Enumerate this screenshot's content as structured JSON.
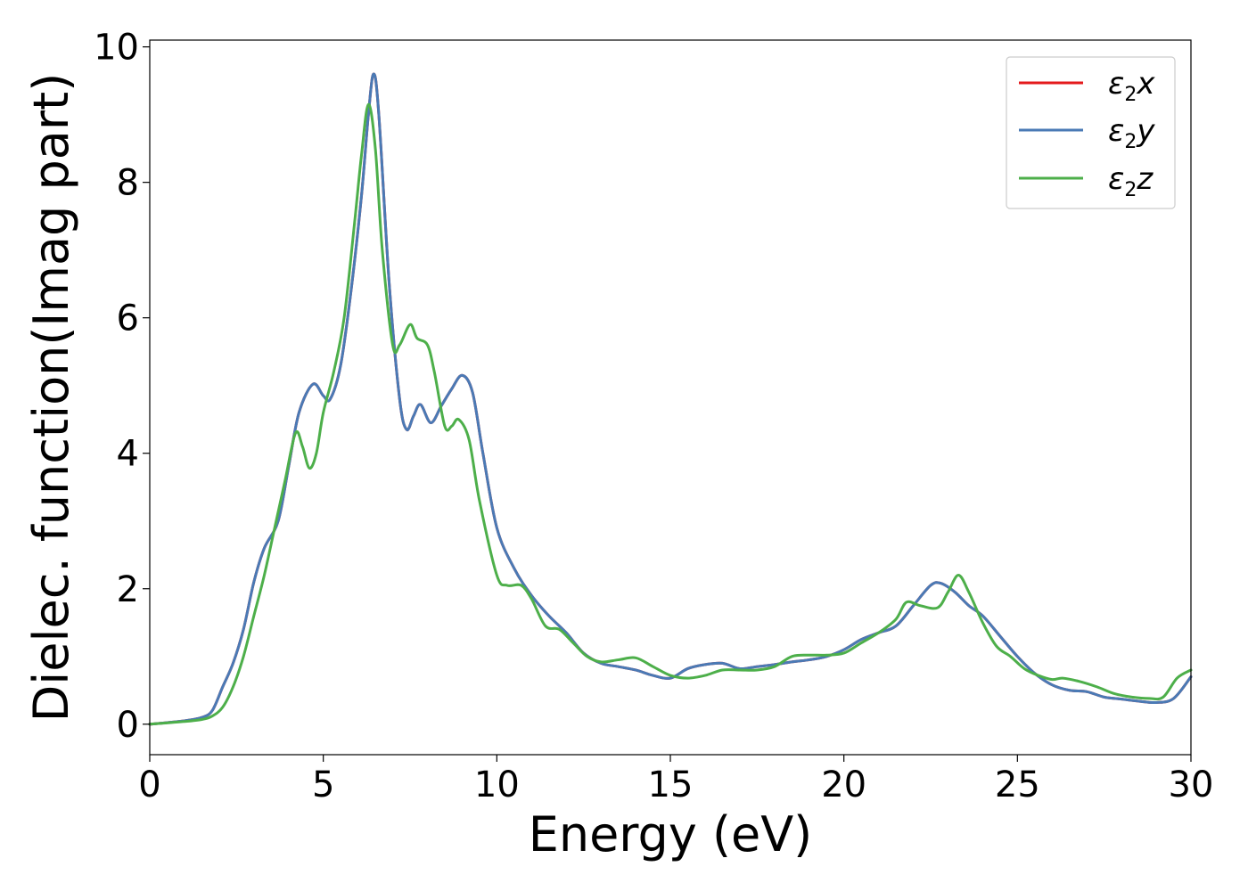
{
  "chart_data": {
    "type": "line",
    "xlabel": "Energy (eV)",
    "ylabel": "Dielec. function(Imag part)",
    "xlim": [
      0,
      30
    ],
    "ylim": [
      -0.45,
      10.1
    ],
    "xticks": [
      "0",
      "5",
      "10",
      "15",
      "20",
      "25",
      "30"
    ],
    "yticks": [
      "0",
      "2",
      "4",
      "6",
      "8",
      "10"
    ],
    "grid": false,
    "legend_position": "top-right",
    "series": [
      {
        "name": "ε2x",
        "legend": {
          "base": "ε",
          "sub": "2",
          "tail": "x"
        },
        "color": "#e41a1c",
        "points": [
          [
            0,
            0
          ],
          [
            1,
            0.05
          ],
          [
            1.5,
            0.1
          ],
          [
            1.8,
            0.2
          ],
          [
            2.1,
            0.55
          ],
          [
            2.4,
            0.9
          ],
          [
            2.7,
            1.4
          ],
          [
            3.0,
            2.1
          ],
          [
            3.3,
            2.6
          ],
          [
            3.7,
            3.0
          ],
          [
            4.0,
            3.8
          ],
          [
            4.3,
            4.6
          ],
          [
            4.7,
            5.02
          ],
          [
            5.0,
            4.85
          ],
          [
            5.2,
            4.8
          ],
          [
            5.5,
            5.3
          ],
          [
            5.8,
            6.4
          ],
          [
            6.1,
            7.8
          ],
          [
            6.3,
            9.0
          ],
          [
            6.45,
            9.6
          ],
          [
            6.6,
            9.0
          ],
          [
            6.9,
            6.5
          ],
          [
            7.2,
            4.8
          ],
          [
            7.4,
            4.35
          ],
          [
            7.6,
            4.55
          ],
          [
            7.8,
            4.72
          ],
          [
            8.1,
            4.45
          ],
          [
            8.4,
            4.7
          ],
          [
            8.7,
            4.95
          ],
          [
            9.0,
            5.15
          ],
          [
            9.3,
            4.9
          ],
          [
            9.6,
            4.0
          ],
          [
            10.0,
            2.9
          ],
          [
            10.5,
            2.3
          ],
          [
            11.0,
            1.9
          ],
          [
            11.5,
            1.6
          ],
          [
            12.0,
            1.35
          ],
          [
            12.5,
            1.05
          ],
          [
            13.0,
            0.9
          ],
          [
            13.5,
            0.85
          ],
          [
            14.0,
            0.8
          ],
          [
            14.5,
            0.72
          ],
          [
            15.0,
            0.68
          ],
          [
            15.5,
            0.82
          ],
          [
            16.0,
            0.88
          ],
          [
            16.5,
            0.9
          ],
          [
            17.0,
            0.82
          ],
          [
            17.5,
            0.85
          ],
          [
            18.0,
            0.88
          ],
          [
            18.5,
            0.92
          ],
          [
            19.0,
            0.95
          ],
          [
            19.5,
            1.0
          ],
          [
            20.0,
            1.1
          ],
          [
            20.5,
            1.25
          ],
          [
            21.0,
            1.35
          ],
          [
            21.5,
            1.45
          ],
          [
            22.0,
            1.75
          ],
          [
            22.5,
            2.05
          ],
          [
            22.8,
            2.08
          ],
          [
            23.2,
            1.95
          ],
          [
            23.6,
            1.75
          ],
          [
            24.0,
            1.6
          ],
          [
            24.5,
            1.3
          ],
          [
            25.0,
            1.0
          ],
          [
            25.5,
            0.75
          ],
          [
            26.0,
            0.58
          ],
          [
            26.5,
            0.5
          ],
          [
            27.0,
            0.48
          ],
          [
            27.5,
            0.4
          ],
          [
            28.0,
            0.37
          ],
          [
            28.5,
            0.34
          ],
          [
            29.0,
            0.32
          ],
          [
            29.5,
            0.38
          ],
          [
            30.0,
            0.7
          ]
        ]
      },
      {
        "name": "ε2y",
        "legend": {
          "base": "ε",
          "sub": "2",
          "tail": "y"
        },
        "color": "#4a7ab5",
        "points": [
          [
            0,
            0
          ],
          [
            1,
            0.05
          ],
          [
            1.5,
            0.1
          ],
          [
            1.8,
            0.2
          ],
          [
            2.1,
            0.55
          ],
          [
            2.4,
            0.9
          ],
          [
            2.7,
            1.4
          ],
          [
            3.0,
            2.1
          ],
          [
            3.3,
            2.6
          ],
          [
            3.7,
            3.0
          ],
          [
            4.0,
            3.8
          ],
          [
            4.3,
            4.6
          ],
          [
            4.7,
            5.02
          ],
          [
            5.0,
            4.85
          ],
          [
            5.2,
            4.8
          ],
          [
            5.5,
            5.3
          ],
          [
            5.8,
            6.4
          ],
          [
            6.1,
            7.8
          ],
          [
            6.3,
            9.0
          ],
          [
            6.45,
            9.6
          ],
          [
            6.6,
            9.0
          ],
          [
            6.9,
            6.5
          ],
          [
            7.2,
            4.8
          ],
          [
            7.4,
            4.35
          ],
          [
            7.6,
            4.55
          ],
          [
            7.8,
            4.72
          ],
          [
            8.1,
            4.45
          ],
          [
            8.4,
            4.7
          ],
          [
            8.7,
            4.95
          ],
          [
            9.0,
            5.15
          ],
          [
            9.3,
            4.9
          ],
          [
            9.6,
            4.0
          ],
          [
            10.0,
            2.9
          ],
          [
            10.5,
            2.3
          ],
          [
            11.0,
            1.9
          ],
          [
            11.5,
            1.6
          ],
          [
            12.0,
            1.35
          ],
          [
            12.5,
            1.05
          ],
          [
            13.0,
            0.9
          ],
          [
            13.5,
            0.85
          ],
          [
            14.0,
            0.8
          ],
          [
            14.5,
            0.72
          ],
          [
            15.0,
            0.68
          ],
          [
            15.5,
            0.82
          ],
          [
            16.0,
            0.88
          ],
          [
            16.5,
            0.9
          ],
          [
            17.0,
            0.82
          ],
          [
            17.5,
            0.85
          ],
          [
            18.0,
            0.88
          ],
          [
            18.5,
            0.92
          ],
          [
            19.0,
            0.95
          ],
          [
            19.5,
            1.0
          ],
          [
            20.0,
            1.1
          ],
          [
            20.5,
            1.25
          ],
          [
            21.0,
            1.35
          ],
          [
            21.5,
            1.45
          ],
          [
            22.0,
            1.75
          ],
          [
            22.5,
            2.05
          ],
          [
            22.8,
            2.08
          ],
          [
            23.2,
            1.95
          ],
          [
            23.6,
            1.75
          ],
          [
            24.0,
            1.6
          ],
          [
            24.5,
            1.3
          ],
          [
            25.0,
            1.0
          ],
          [
            25.5,
            0.75
          ],
          [
            26.0,
            0.58
          ],
          [
            26.5,
            0.5
          ],
          [
            27.0,
            0.48
          ],
          [
            27.5,
            0.4
          ],
          [
            28.0,
            0.37
          ],
          [
            28.5,
            0.34
          ],
          [
            29.0,
            0.32
          ],
          [
            29.5,
            0.38
          ],
          [
            30.0,
            0.7
          ]
        ]
      },
      {
        "name": "ε2z",
        "legend": {
          "base": "ε",
          "sub": "2",
          "tail": "z"
        },
        "color": "#4daf4a",
        "points": [
          [
            0,
            0
          ],
          [
            1,
            0.04
          ],
          [
            1.5,
            0.07
          ],
          [
            1.8,
            0.12
          ],
          [
            2.1,
            0.25
          ],
          [
            2.4,
            0.55
          ],
          [
            2.7,
            1.0
          ],
          [
            3.0,
            1.6
          ],
          [
            3.3,
            2.2
          ],
          [
            3.6,
            2.9
          ],
          [
            3.9,
            3.6
          ],
          [
            4.2,
            4.3
          ],
          [
            4.4,
            4.1
          ],
          [
            4.6,
            3.78
          ],
          [
            4.8,
            4.0
          ],
          [
            5.0,
            4.6
          ],
          [
            5.3,
            5.2
          ],
          [
            5.6,
            6.0
          ],
          [
            5.9,
            7.4
          ],
          [
            6.1,
            8.4
          ],
          [
            6.3,
            9.15
          ],
          [
            6.5,
            8.5
          ],
          [
            6.7,
            7.0
          ],
          [
            7.0,
            5.6
          ],
          [
            7.2,
            5.6
          ],
          [
            7.5,
            5.9
          ],
          [
            7.7,
            5.7
          ],
          [
            8.0,
            5.6
          ],
          [
            8.2,
            5.2
          ],
          [
            8.5,
            4.4
          ],
          [
            8.7,
            4.4
          ],
          [
            8.9,
            4.5
          ],
          [
            9.2,
            4.2
          ],
          [
            9.5,
            3.3
          ],
          [
            10.0,
            2.2
          ],
          [
            10.3,
            2.05
          ],
          [
            10.7,
            2.05
          ],
          [
            11.0,
            1.85
          ],
          [
            11.4,
            1.45
          ],
          [
            11.8,
            1.4
          ],
          [
            12.2,
            1.2
          ],
          [
            12.6,
            1.0
          ],
          [
            13.0,
            0.92
          ],
          [
            13.5,
            0.95
          ],
          [
            14.0,
            0.98
          ],
          [
            14.5,
            0.85
          ],
          [
            15.0,
            0.72
          ],
          [
            15.5,
            0.68
          ],
          [
            16.0,
            0.72
          ],
          [
            16.5,
            0.8
          ],
          [
            17.0,
            0.8
          ],
          [
            17.5,
            0.8
          ],
          [
            18.0,
            0.85
          ],
          [
            18.5,
            1.0
          ],
          [
            19.0,
            1.02
          ],
          [
            19.5,
            1.02
          ],
          [
            20.0,
            1.05
          ],
          [
            20.5,
            1.2
          ],
          [
            21.0,
            1.35
          ],
          [
            21.5,
            1.55
          ],
          [
            21.8,
            1.8
          ],
          [
            22.2,
            1.75
          ],
          [
            22.7,
            1.72
          ],
          [
            23.0,
            1.95
          ],
          [
            23.3,
            2.2
          ],
          [
            23.6,
            1.95
          ],
          [
            24.0,
            1.5
          ],
          [
            24.4,
            1.15
          ],
          [
            24.8,
            1.0
          ],
          [
            25.2,
            0.82
          ],
          [
            25.6,
            0.72
          ],
          [
            26.0,
            0.66
          ],
          [
            26.3,
            0.68
          ],
          [
            26.8,
            0.63
          ],
          [
            27.3,
            0.55
          ],
          [
            27.8,
            0.45
          ],
          [
            28.3,
            0.4
          ],
          [
            28.8,
            0.38
          ],
          [
            29.2,
            0.4
          ],
          [
            29.6,
            0.68
          ],
          [
            30.0,
            0.8
          ]
        ]
      }
    ]
  }
}
